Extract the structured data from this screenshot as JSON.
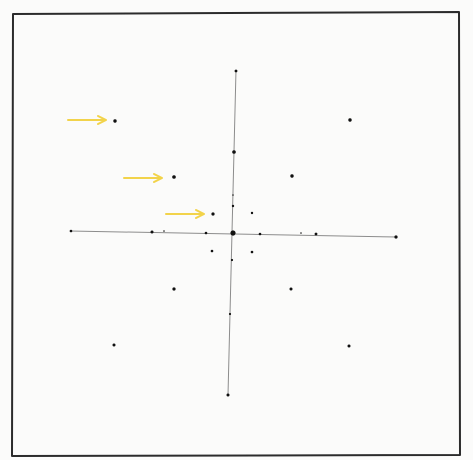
{
  "diagram": {
    "description_text": "",
    "colors": {
      "paper": "#fbfbfa",
      "frame": "#2b2b2b",
      "axis_line": "#8c8c8c",
      "dot": "#111111",
      "arrow": "#f2d34a"
    },
    "elements": {
      "frame": "outer-frame",
      "axes": [
        "horizontal-axis",
        "vertical-axis"
      ],
      "arrows": [
        "arrow-1",
        "arrow-2",
        "arrow-3"
      ],
      "dot_count": 28
    }
  }
}
